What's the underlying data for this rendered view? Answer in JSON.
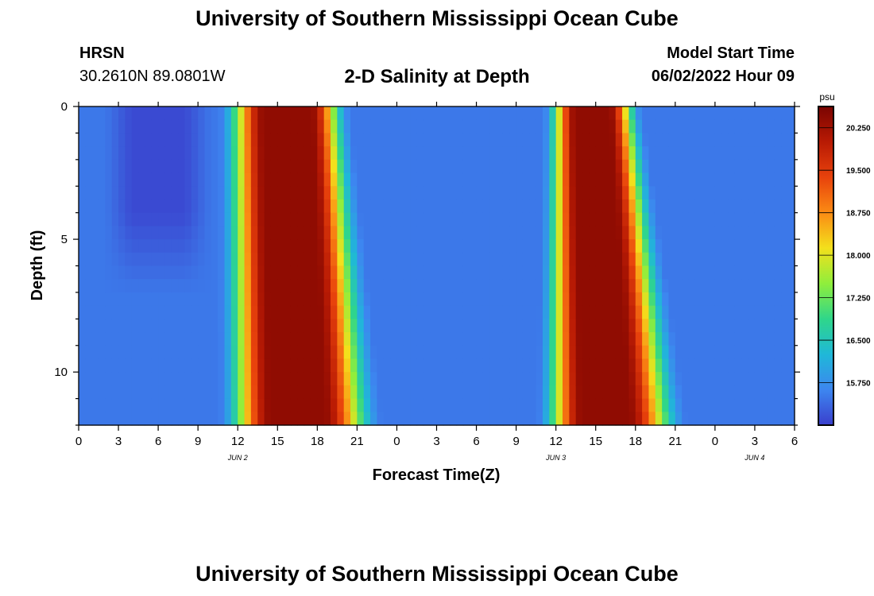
{
  "header": {
    "title": "University of Southern Mississippi Ocean Cube",
    "station": "HRSN",
    "coords": "30.2610N  89.0801W",
    "start_label": "Model Start Time",
    "start_value": "06/02/2022 Hour 09"
  },
  "footer": {
    "title": "University of Southern Mississippi Ocean Cube"
  },
  "chart_data": {
    "type": "heatmap",
    "title": "2-D Salinity at Depth",
    "xlabel": "Forecast Time(Z)",
    "ylabel": "Depth (ft)",
    "x_hours_from_jun2_00z": [
      0,
      54
    ],
    "ylim": [
      0,
      12
    ],
    "y_inverted": true,
    "x_tick_labels": [
      "0",
      "3",
      "6",
      "9",
      "12",
      "15",
      "18",
      "21",
      "0",
      "3",
      "6",
      "9",
      "12",
      "15",
      "18",
      "21",
      "0",
      "3",
      "6"
    ],
    "y_tick_labels": [
      "0",
      "5",
      "10"
    ],
    "date_labels": [
      {
        "text": "JUN 2",
        "hour": 12
      },
      {
        "text": "JUN 3",
        "hour": 36
      },
      {
        "text": "JUN 4",
        "hour": 51
      }
    ],
    "colorbar": {
      "unit": "psu",
      "min": 15.0,
      "max": 20.625,
      "tick_labels": [
        "20.250",
        "19.500",
        "18.750",
        "18.000",
        "17.250",
        "16.500",
        "15.750"
      ],
      "tick_values": [
        20.25,
        19.5,
        18.75,
        18.0,
        17.25,
        16.5,
        15.75
      ],
      "colors": [
        "#3a3fcc",
        "#3d86f0",
        "#1fb8d8",
        "#2fd68a",
        "#8fee3c",
        "#f3e01c",
        "#fb8b14",
        "#e8420c",
        "#b81a04",
        "#7a0401"
      ]
    },
    "salinity_fronts": {
      "background": 15.5,
      "peak": 20.4,
      "depths": [
        0,
        12
      ],
      "pulse1_rise_hour": [
        10.5,
        10.5
      ],
      "pulse1_peak_start": [
        14,
        14.5
      ],
      "pulse1_peak_end": [
        17.5,
        18.5
      ],
      "pulse1_fall_hour": [
        20.5,
        23
      ],
      "pulse2_rise_hour": [
        35,
        34.5
      ],
      "pulse2_peak_start": [
        37.5,
        38
      ],
      "pulse2_peak_end": [
        40,
        41.5
      ],
      "pulse2_fall_hour": [
        42.5,
        46
      ],
      "low_zone_hours": [
        4,
        9
      ],
      "low_zone_depths": [
        0,
        7
      ],
      "low_value": 15.1
    }
  }
}
